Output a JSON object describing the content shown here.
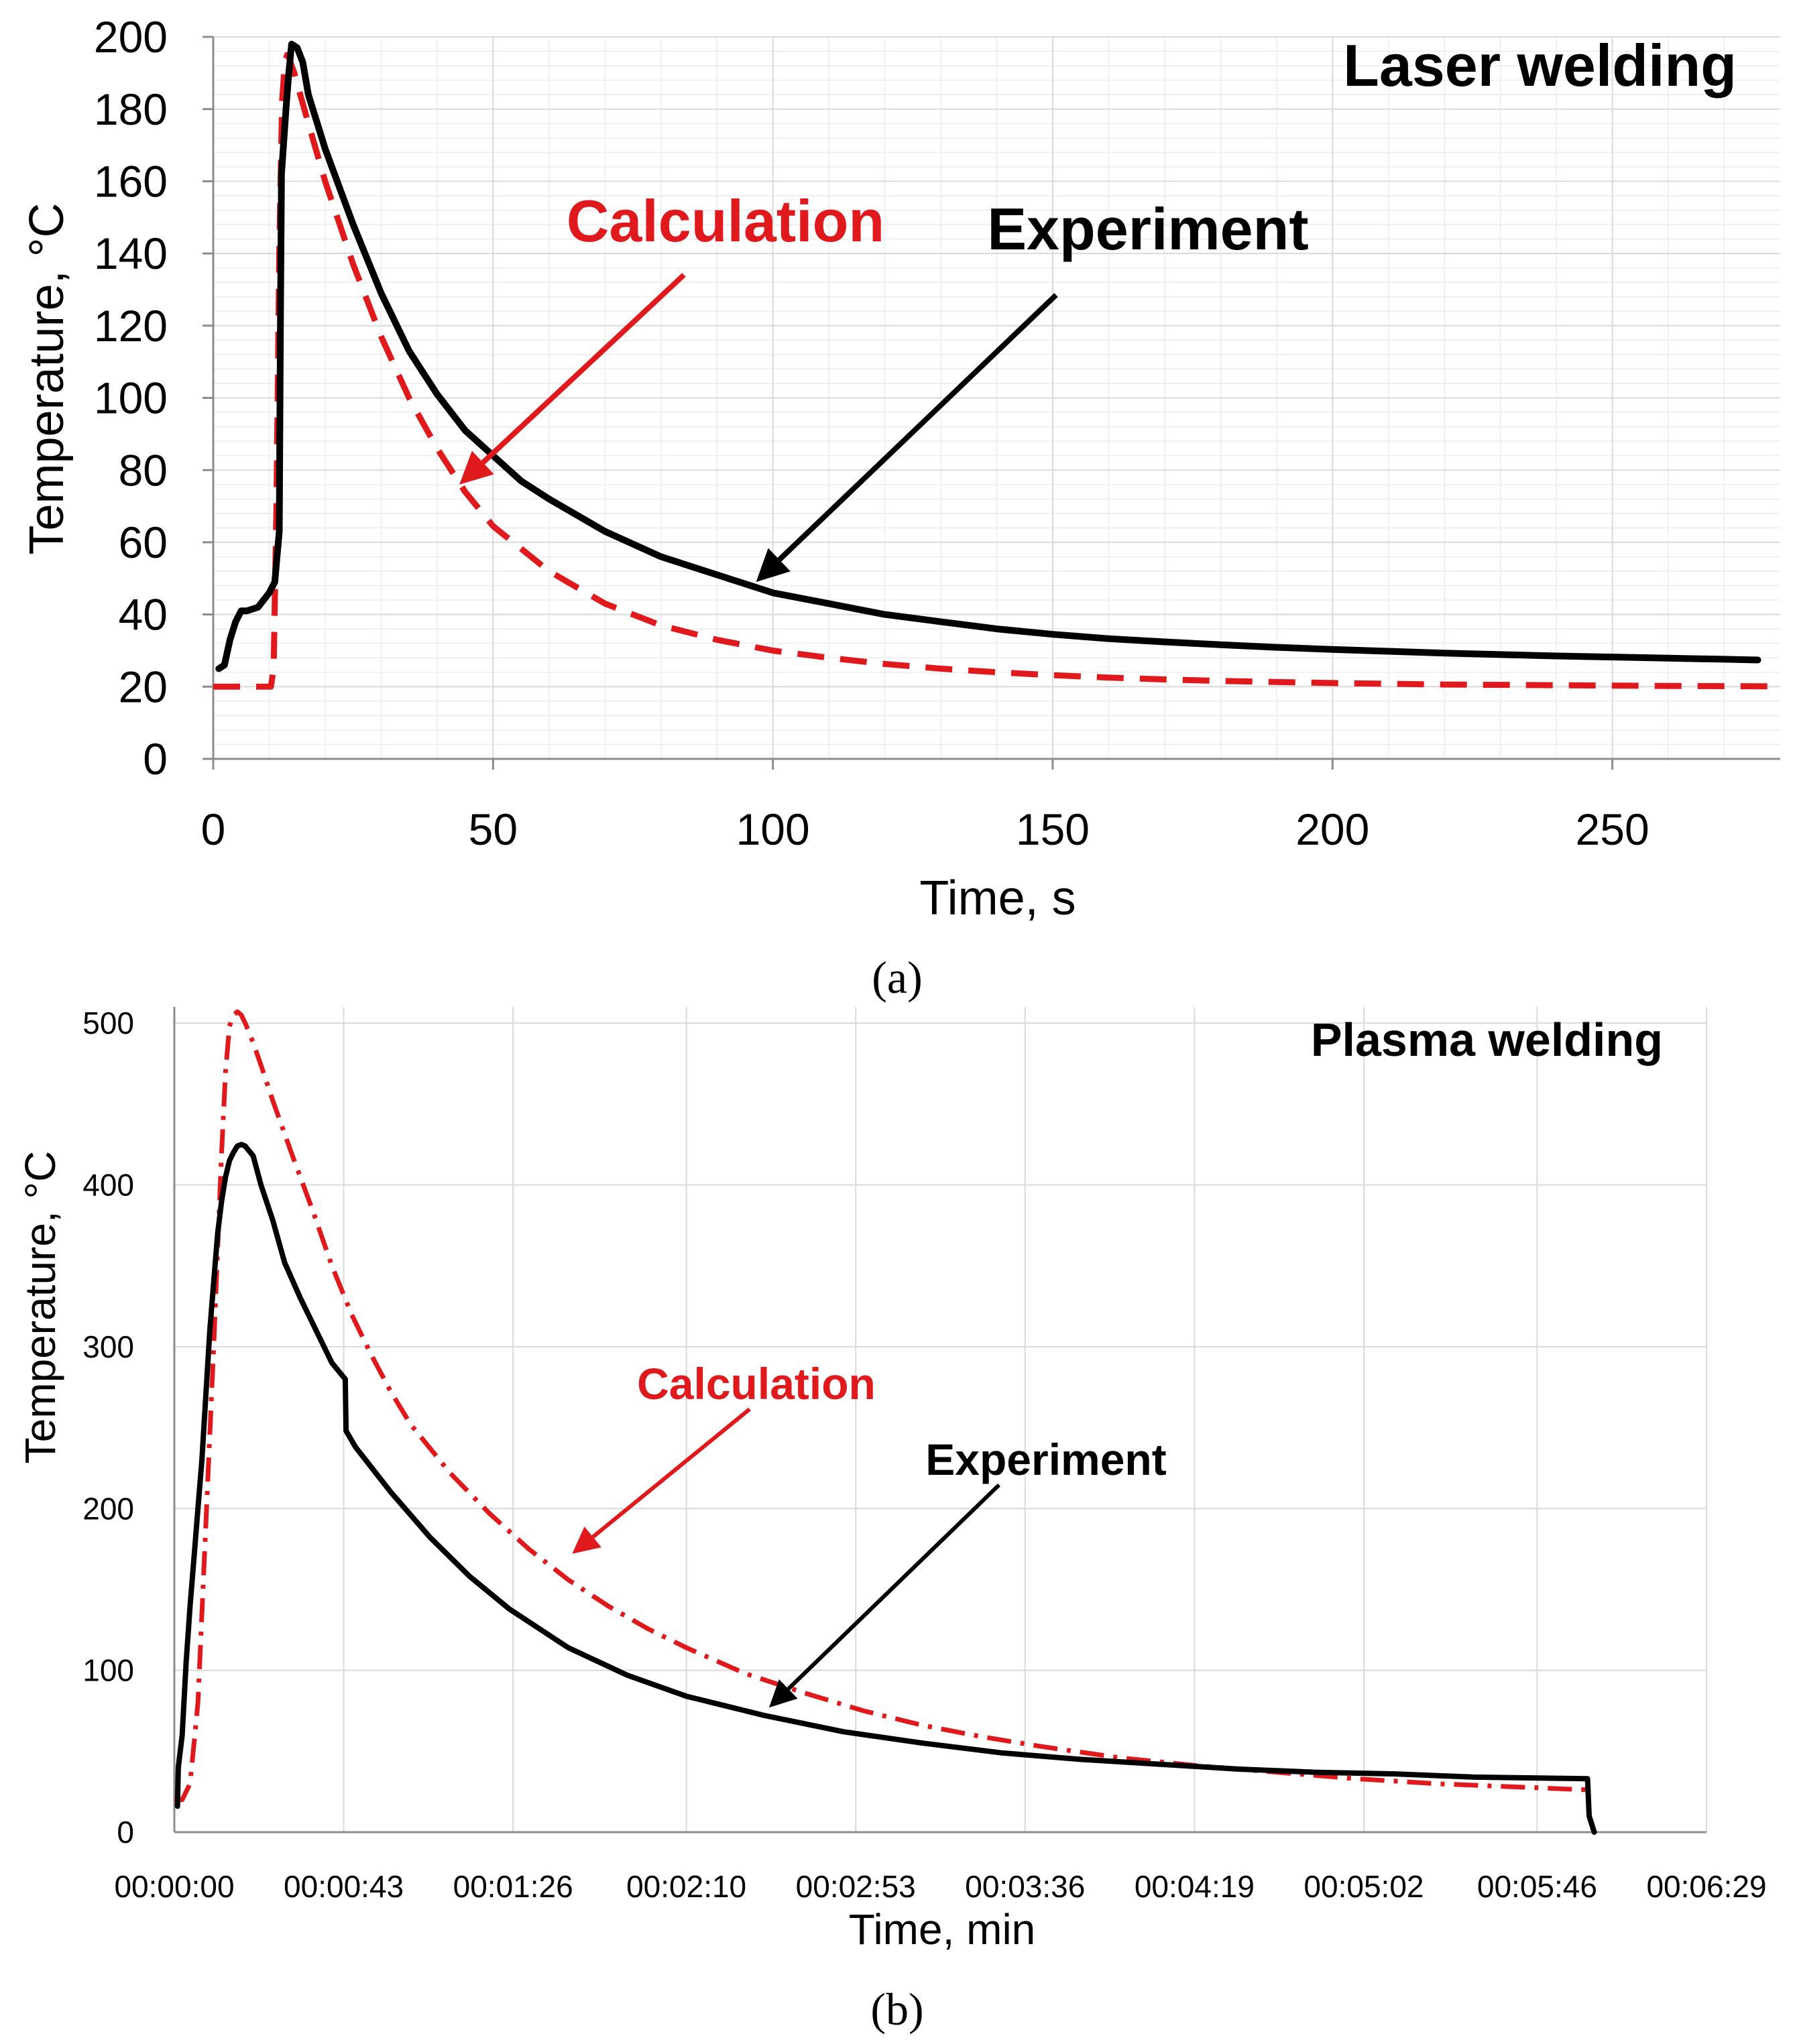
{
  "chart_data": [
    {
      "type": "line",
      "panel_label": "(a)",
      "title": "Laser welding",
      "xlabel": "Time, s",
      "ylabel": "Temperature, °C",
      "xlim": [
        0,
        280
      ],
      "ylim": [
        0,
        200
      ],
      "x_ticks": [
        0,
        50,
        100,
        150,
        200,
        250
      ],
      "y_ticks": [
        0,
        20,
        40,
        60,
        80,
        100,
        120,
        140,
        160,
        180,
        200
      ],
      "x_tick_labels": [
        "0",
        "50",
        "100",
        "150",
        "200",
        "250"
      ],
      "y_tick_labels": [
        "0",
        "20",
        "40",
        "60",
        "80",
        "100",
        "120",
        "140",
        "160",
        "180",
        "200"
      ],
      "grid": true,
      "series": [
        {
          "name": "Experiment",
          "color": "#000000",
          "style": "solid",
          "x": [
            1,
            2,
            3,
            4,
            5,
            6,
            8,
            9,
            10,
            11,
            11.8,
            12,
            12.2,
            13,
            13.5,
            14,
            15,
            16,
            17,
            20,
            25,
            30,
            35,
            40,
            45,
            50,
            55,
            60,
            70,
            80,
            90,
            100,
            110,
            120,
            130,
            140,
            150,
            160,
            170,
            180,
            190,
            200,
            210,
            220,
            230,
            240,
            250,
            260,
            270,
            276
          ],
          "values": [
            25,
            26,
            33,
            38,
            41,
            41,
            42,
            44,
            46,
            49,
            63,
            120,
            162,
            180,
            190,
            198,
            197,
            193,
            184,
            169,
            148,
            129,
            113,
            101,
            91,
            84,
            77,
            72,
            63,
            56,
            51,
            46,
            43,
            40,
            38,
            36,
            34.5,
            33.3,
            32.4,
            31.6,
            30.9,
            30.3,
            29.8,
            29.3,
            28.9,
            28.5,
            28.2,
            27.9,
            27.6,
            27.4
          ]
        },
        {
          "name": "Calculation",
          "color": "#e0191c",
          "style": "dashed",
          "x": [
            0,
            10.3,
            10.8,
            11.3,
            11.8,
            12.3,
            12.8,
            13.2,
            13.6,
            14,
            14.5,
            15,
            17,
            20,
            25,
            30,
            35,
            40,
            45,
            50,
            60,
            70,
            80,
            90,
            100,
            110,
            120,
            130,
            140,
            150,
            160,
            170,
            180,
            200,
            220,
            240,
            260,
            280
          ],
          "values": [
            20,
            20,
            25,
            70,
            140,
            182,
            193,
            195,
            194,
            192,
            190,
            187,
            176,
            160,
            137,
            117,
            100,
            86,
            74,
            64.5,
            52,
            43,
            37,
            33,
            30,
            28,
            26.3,
            25,
            24,
            23.2,
            22.5,
            22,
            21.6,
            21,
            20.6,
            20.4,
            20.2,
            20.1
          ]
        }
      ],
      "annotations": [
        {
          "text": "Calculation",
          "color": "#e0191c",
          "points_to": [
            44,
            76
          ]
        },
        {
          "text": "Experiment",
          "color": "#000000",
          "points_to": [
            97,
            49
          ]
        }
      ]
    },
    {
      "type": "line",
      "panel_label": "(b)",
      "title": "Plasma welding",
      "xlabel": "Time, min",
      "ylabel": "Temperature, °C",
      "xlim": [
        0,
        389
      ],
      "ylim": [
        0,
        510
      ],
      "x_ticks": [
        0,
        43,
        86,
        130,
        173,
        216,
        259,
        302,
        346,
        389
      ],
      "y_ticks": [
        0,
        100,
        200,
        300,
        400,
        500
      ],
      "x_tick_labels": [
        "00:00:00",
        "00:00:43",
        "00:01:26",
        "00:02:10",
        "00:02:53",
        "00:03:36",
        "00:04:19",
        "00:05:02",
        "00:05:46",
        "00:06:29"
      ],
      "y_tick_labels": [
        "0",
        "100",
        "200",
        "300",
        "400",
        "500"
      ],
      "grid": true,
      "series": [
        {
          "name": "Experiment",
          "color": "#000000",
          "style": "solid",
          "x": [
            0.8,
            1,
            2,
            3,
            4,
            5,
            6,
            7,
            8,
            9,
            10,
            11,
            12,
            13,
            14,
            15,
            16,
            17,
            18,
            20,
            22,
            25,
            28,
            32,
            36,
            40,
            43.4,
            43.6,
            46,
            55,
            65,
            75,
            85,
            100,
            115,
            130,
            150,
            170,
            190,
            210,
            230,
            250,
            270,
            290,
            310,
            330,
            345,
            358.8,
            359.2,
            360.5
          ],
          "values": [
            16,
            40,
            60,
            105,
            140,
            170,
            200,
            230,
            270,
            310,
            340,
            370,
            390,
            405,
            415,
            420,
            424,
            425,
            424,
            418,
            400,
            378,
            352,
            330,
            310,
            290,
            280,
            248,
            238,
            210,
            182,
            158,
            138,
            114,
            97,
            84,
            72,
            62,
            55,
            49,
            45,
            42,
            39,
            37,
            36,
            34,
            33.5,
            33,
            10,
            0
          ]
        },
        {
          "name": "Calculation",
          "color": "#e0191c",
          "style": "dashdot",
          "x": [
            0,
            2,
            4,
            6,
            8,
            10,
            11,
            12,
            13,
            14,
            15,
            16,
            17,
            18,
            20,
            22,
            25,
            30,
            35,
            40,
            45,
            50,
            55,
            60,
            70,
            80,
            90,
            100,
            110,
            120,
            130,
            145,
            160,
            175,
            190,
            205,
            220,
            240,
            260,
            280,
            300,
            320,
            340,
            360
          ],
          "values": [
            20,
            20,
            30,
            80,
            190,
            300,
            360,
            420,
            470,
            498,
            505,
            507,
            505,
            500,
            488,
            474,
            452,
            418,
            385,
            350,
            320,
            295,
            272,
            252,
            222,
            197,
            175,
            156,
            140,
            126,
            114,
            98,
            86,
            75,
            66,
            59,
            53,
            46,
            41,
            37,
            33,
            30,
            28,
            26
          ]
        }
      ],
      "annotations": [
        {
          "text": "Calculation",
          "color": "#e0191c",
          "points_to": [
            101,
            172
          ]
        },
        {
          "text": "Experiment",
          "color": "#000000",
          "points_to": [
            151,
            77
          ]
        }
      ]
    }
  ]
}
